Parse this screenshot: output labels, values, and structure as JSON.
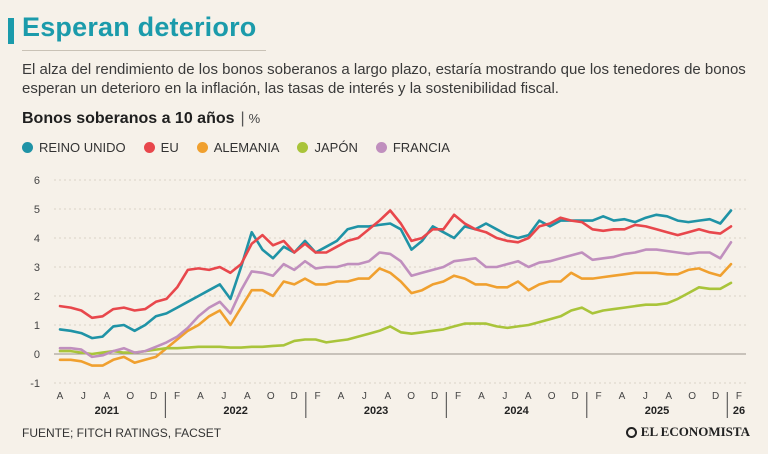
{
  "header": {
    "title": "Esperan deterioro",
    "subtitle": "El alza del rendimiento de los bonos soberanos a largo plazo, estaría mostrando que los tenedores de bonos esperan un deterioro en la inflación, las tasas de interés y la sostenibilidad fiscal.",
    "chart_title": "Bonos soberanos a 10 años",
    "chart_unit_sep": "|",
    "chart_unit": "%"
  },
  "footer": {
    "source": "FUENTE; FITCH RATINGS, FACSET",
    "brand": "EL ECONOMISTA"
  },
  "chart_data": {
    "type": "line",
    "title": "Bonos soberanos a 10 años",
    "ylabel": "%",
    "xlabel": "",
    "ylim": [
      -1,
      6
    ],
    "yticks": [
      -1,
      0,
      1,
      2,
      3,
      4,
      5,
      6
    ],
    "grid": true,
    "legend_position": "top-left",
    "month_ticks": [
      "A",
      "J",
      "A",
      "O",
      "D",
      "F",
      "A",
      "J",
      "A",
      "O",
      "D",
      "F",
      "A",
      "J",
      "A",
      "O",
      "D",
      "F",
      "A",
      "J",
      "A",
      "O",
      "D",
      "F",
      "A",
      "J",
      "A",
      "O",
      "D",
      "F"
    ],
    "year_labels": [
      "2021",
      "2022",
      "2023",
      "2024",
      "2025",
      "26"
    ],
    "series": [
      {
        "name": "REINO UNIDO",
        "color": "#1f93a6",
        "values": [
          0.85,
          0.8,
          0.72,
          0.55,
          0.6,
          0.95,
          1.0,
          0.8,
          1.0,
          1.3,
          1.4,
          1.6,
          1.8,
          2.0,
          2.2,
          2.4,
          1.9,
          3.0,
          4.2,
          3.6,
          3.3,
          3.7,
          3.5,
          3.9,
          3.5,
          3.7,
          3.9,
          4.3,
          4.4,
          4.4,
          4.45,
          4.5,
          4.3,
          3.6,
          3.9,
          4.4,
          4.2,
          4.0,
          4.4,
          4.3,
          4.5,
          4.3,
          4.1,
          4.0,
          4.1,
          4.6,
          4.4,
          4.6,
          4.6,
          4.6,
          4.6,
          4.75,
          4.6,
          4.65,
          4.55,
          4.7,
          4.8,
          4.75,
          4.6,
          4.55,
          4.6,
          4.65,
          4.5,
          4.95
        ]
      },
      {
        "name": "EU",
        "color": "#e8474c",
        "values": [
          1.65,
          1.6,
          1.5,
          1.25,
          1.3,
          1.55,
          1.6,
          1.5,
          1.55,
          1.8,
          1.9,
          2.3,
          2.9,
          2.95,
          2.9,
          3.0,
          2.8,
          3.1,
          3.8,
          4.1,
          3.75,
          3.9,
          3.5,
          3.8,
          3.5,
          3.5,
          3.7,
          3.9,
          4.0,
          4.3,
          4.6,
          4.95,
          4.5,
          3.9,
          4.0,
          4.3,
          4.3,
          4.8,
          4.5,
          4.3,
          4.2,
          4.0,
          3.9,
          3.85,
          4.0,
          4.4,
          4.5,
          4.7,
          4.6,
          4.55,
          4.3,
          4.25,
          4.3,
          4.3,
          4.45,
          4.4,
          4.3,
          4.2,
          4.1,
          4.2,
          4.3,
          4.2,
          4.15,
          4.4
        ]
      },
      {
        "name": "ALEMANIA",
        "color": "#f0a02f",
        "values": [
          -0.2,
          -0.2,
          -0.25,
          -0.4,
          -0.4,
          -0.2,
          -0.1,
          -0.3,
          -0.2,
          -0.1,
          0.2,
          0.5,
          0.8,
          1.0,
          1.3,
          1.5,
          1.0,
          1.6,
          2.2,
          2.2,
          2.0,
          2.5,
          2.4,
          2.6,
          2.4,
          2.4,
          2.5,
          2.5,
          2.6,
          2.6,
          2.95,
          2.8,
          2.5,
          2.1,
          2.2,
          2.4,
          2.5,
          2.7,
          2.6,
          2.4,
          2.4,
          2.3,
          2.3,
          2.5,
          2.2,
          2.4,
          2.5,
          2.5,
          2.8,
          2.6,
          2.6,
          2.65,
          2.7,
          2.75,
          2.8,
          2.8,
          2.8,
          2.75,
          2.75,
          2.9,
          2.95,
          2.8,
          2.7,
          3.1
        ]
      },
      {
        "name": "JAPÓN",
        "color": "#a9c43a",
        "values": [
          0.1,
          0.1,
          0.05,
          0.0,
          0.05,
          0.1,
          0.05,
          0.05,
          0.1,
          0.15,
          0.2,
          0.2,
          0.22,
          0.25,
          0.25,
          0.25,
          0.22,
          0.22,
          0.25,
          0.25,
          0.28,
          0.3,
          0.45,
          0.5,
          0.5,
          0.4,
          0.45,
          0.5,
          0.6,
          0.7,
          0.8,
          0.95,
          0.75,
          0.7,
          0.75,
          0.8,
          0.85,
          0.95,
          1.05,
          1.05,
          1.05,
          0.95,
          0.9,
          0.95,
          1.0,
          1.1,
          1.2,
          1.3,
          1.5,
          1.6,
          1.4,
          1.5,
          1.55,
          1.6,
          1.65,
          1.7,
          1.7,
          1.75,
          1.9,
          2.1,
          2.3,
          2.25,
          2.25,
          2.45
        ]
      },
      {
        "name": "FRANCIA",
        "color": "#c08fbe",
        "values": [
          0.2,
          0.2,
          0.15,
          -0.1,
          -0.05,
          0.1,
          0.2,
          0.05,
          0.1,
          0.25,
          0.4,
          0.6,
          0.9,
          1.3,
          1.6,
          1.8,
          1.4,
          2.2,
          2.85,
          2.8,
          2.7,
          3.1,
          2.9,
          3.2,
          2.95,
          3.0,
          3.0,
          3.1,
          3.1,
          3.2,
          3.5,
          3.45,
          3.2,
          2.7,
          2.8,
          2.9,
          3.0,
          3.2,
          3.25,
          3.3,
          3.0,
          3.0,
          3.1,
          3.2,
          3.0,
          3.15,
          3.2,
          3.3,
          3.4,
          3.5,
          3.25,
          3.3,
          3.35,
          3.45,
          3.5,
          3.6,
          3.6,
          3.55,
          3.5,
          3.45,
          3.5,
          3.5,
          3.3,
          3.85
        ]
      }
    ]
  }
}
